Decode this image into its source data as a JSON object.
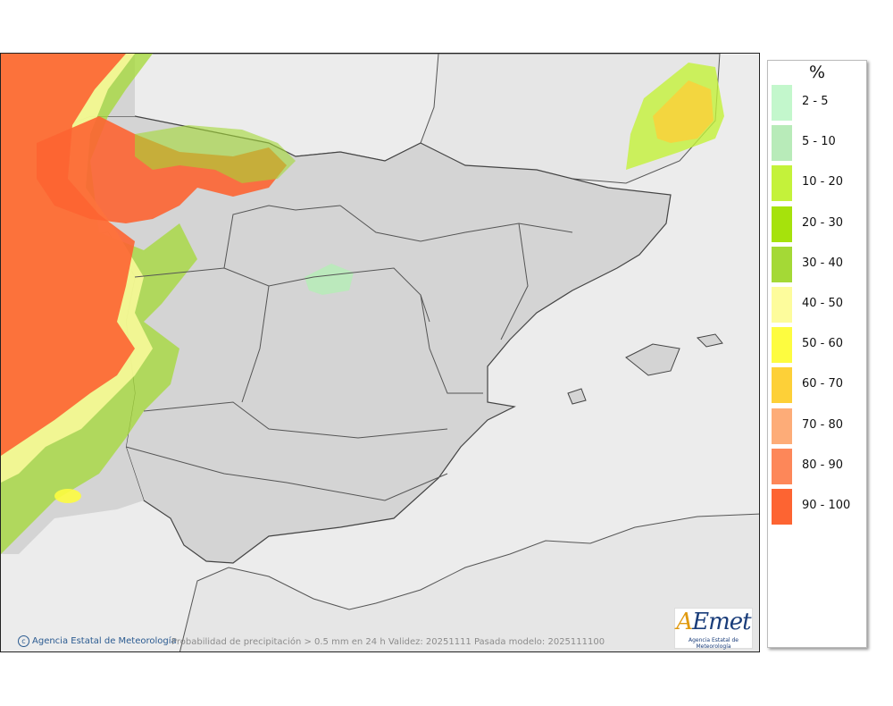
{
  "legend": {
    "unit": "%",
    "items": [
      {
        "label": "2 - 5",
        "color": "#c3f7cc"
      },
      {
        "label": "5 - 10",
        "color": "#b8ebb9"
      },
      {
        "label": "10 - 20",
        "color": "#c4f23a"
      },
      {
        "label": "20 - 30",
        "color": "#a6e20c"
      },
      {
        "label": "30 - 40",
        "color": "#a4d936"
      },
      {
        "label": "40 - 50",
        "color": "#fdfc9c"
      },
      {
        "label": "50 - 60",
        "color": "#fdfc40"
      },
      {
        "label": "60 - 70",
        "color": "#fdd038"
      },
      {
        "label": "70 - 80",
        "color": "#fdac78"
      },
      {
        "label": "80 - 90",
        "color": "#fd8759"
      },
      {
        "label": "90 - 100",
        "color": "#fd6432"
      }
    ]
  },
  "credit": "Agencia Estatal de Meteorología",
  "caption": "Probabilidad de precipitación > 0.5 mm en 24 h Validez: 20251111 Pasada modelo: 2025111100",
  "logo": {
    "text": "AEmet",
    "subtitle": "Agencia Estatal de Meteorología"
  },
  "colors": {
    "land": "#d4d4d4",
    "sea": "#ececec",
    "border": "#555555"
  }
}
